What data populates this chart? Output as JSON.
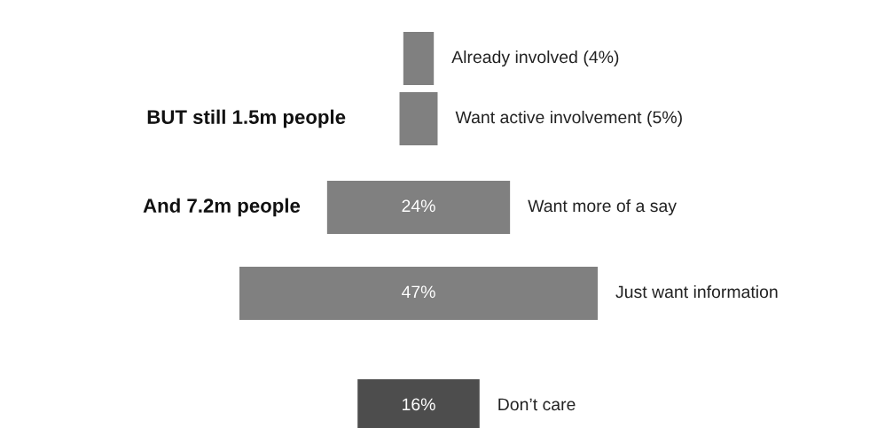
{
  "chart_data": {
    "type": "other",
    "categories": [
      "Already involved",
      "Want active involvement",
      "Want more of a say",
      "Just want information",
      "Don’t care"
    ],
    "values": [
      4,
      5,
      24,
      47,
      16
    ],
    "value_labels": [
      "(4%)",
      "(5%)",
      "24%",
      "47%",
      "16%"
    ],
    "colors": [
      "#808080",
      "#808080",
      "#808080",
      "#808080",
      "#4d4d4d"
    ],
    "annotations": [
      "BUT still 1.5m people",
      "And 7.2m people"
    ]
  }
}
